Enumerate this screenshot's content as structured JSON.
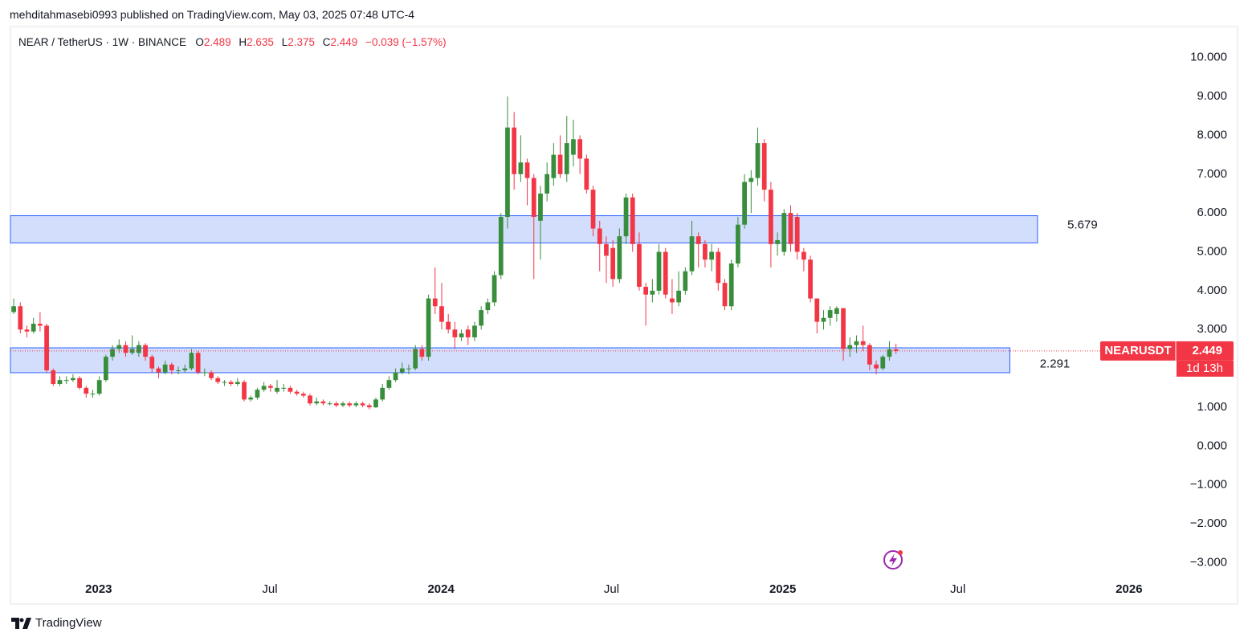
{
  "header": {
    "publisher": "mehditahmasebi0993 published on TradingView.com, May 03, 2025 07:48 UTC-4",
    "brand": "TradingView"
  },
  "chart_data": {
    "type": "candlestick",
    "title": "NEAR / TetherUS · 1W · BINANCE",
    "legend_labels": [
      "O",
      "H",
      "L",
      "C"
    ],
    "change": "−0.039 (−1.57%)",
    "symbol": "NEARUSDT",
    "countdown": "1d 13h",
    "up_color": "#388e3c",
    "down_color": "#f23645",
    "zone_color": "#d3defc",
    "zone_border": "#2962ff",
    "open": [
      3.45,
      3.6,
      3.0,
      2.95,
      3.15,
      3.1,
      1.95,
      1.6,
      1.7,
      1.7,
      1.75,
      1.5,
      1.35,
      1.35,
      1.7,
      2.3,
      2.5,
      2.6,
      2.4,
      2.4,
      2.6,
      2.3,
      2.0,
      1.9,
      2.1,
      1.95,
      1.95,
      2.0,
      2.4,
      1.9,
      1.9,
      1.75,
      1.65,
      1.65,
      1.6,
      1.65,
      1.2,
      1.25,
      1.45,
      1.55,
      1.4,
      1.5,
      1.5,
      1.4,
      1.35,
      1.3,
      1.1,
      1.15,
      1.1,
      1.1,
      1.05,
      1.1,
      1.05,
      1.1,
      1.05,
      1.0,
      1.2,
      1.5,
      1.7,
      1.9,
      2.0,
      2.0,
      2.5,
      2.3,
      3.8,
      3.6,
      3.2,
      3.0,
      2.8,
      3.0,
      2.8,
      3.1,
      3.5,
      3.7,
      4.4,
      5.9,
      8.2,
      7.0,
      7.3,
      6.9,
      5.8,
      6.5,
      6.9,
      7.5,
      7.0,
      7.5,
      7.9,
      7.4,
      6.6,
      5.6,
      5.2,
      5.1,
      4.3,
      5.4,
      6.4,
      5.2,
      4.1,
      3.9,
      4.0,
      5.0,
      3.8,
      3.7,
      4.0,
      4.5,
      5.4,
      5.2,
      4.8,
      5.0,
      4.2,
      3.6,
      4.7,
      5.7,
      6.8,
      6.9,
      7.8,
      6.6,
      5.2,
      5.0,
      6.0,
      5.9,
      5.0,
      4.8,
      3.8,
      3.2,
      3.3,
      3.4,
      3.55,
      2.5,
      2.6,
      2.7,
      2.6,
      2.1,
      2.0,
      2.3,
      2.489
    ],
    "high": [
      3.8,
      3.7,
      3.1,
      3.3,
      3.45,
      3.15,
      2.0,
      1.8,
      1.8,
      1.85,
      1.8,
      1.55,
      1.45,
      1.8,
      2.35,
      2.6,
      2.75,
      2.7,
      2.85,
      2.7,
      2.65,
      2.35,
      2.05,
      2.2,
      2.15,
      2.05,
      2.1,
      2.5,
      2.45,
      2.0,
      1.95,
      1.8,
      1.7,
      1.7,
      1.75,
      1.7,
      1.3,
      1.5,
      1.65,
      1.6,
      1.7,
      1.6,
      1.55,
      1.45,
      1.4,
      1.35,
      1.25,
      1.2,
      1.15,
      1.15,
      1.15,
      1.15,
      1.15,
      1.15,
      1.1,
      1.25,
      1.6,
      1.8,
      2.0,
      2.15,
      2.1,
      2.6,
      2.6,
      3.9,
      4.6,
      4.2,
      3.4,
      3.2,
      3.0,
      3.1,
      3.2,
      3.6,
      3.8,
      4.5,
      6.0,
      9.0,
      8.6,
      8.0,
      7.4,
      7.0,
      6.7,
      7.3,
      7.8,
      8.0,
      8.5,
      8.4,
      8.0,
      7.5,
      6.7,
      5.8,
      5.4,
      5.3,
      5.6,
      6.5,
      6.5,
      5.5,
      4.2,
      4.3,
      5.2,
      5.1,
      4.3,
      4.5,
      4.6,
      5.8,
      5.5,
      5.3,
      5.2,
      5.1,
      4.3,
      4.8,
      5.9,
      7.0,
      7.1,
      8.2,
      7.9,
      6.8,
      5.5,
      6.1,
      6.2,
      6.0,
      5.1,
      4.9,
      3.8,
      3.5,
      3.6,
      3.6,
      3.55,
      2.8,
      2.85,
      3.1,
      2.65,
      2.2,
      2.35,
      2.7,
      2.635
    ],
    "low": [
      3.4,
      2.9,
      2.8,
      2.9,
      2.95,
      1.9,
      1.55,
      1.55,
      1.6,
      1.65,
      1.45,
      1.25,
      1.25,
      1.3,
      1.65,
      2.2,
      2.4,
      2.3,
      2.35,
      2.3,
      2.2,
      1.9,
      1.75,
      1.85,
      1.85,
      1.85,
      1.9,
      1.95,
      1.85,
      1.8,
      1.7,
      1.6,
      1.55,
      1.55,
      1.55,
      1.15,
      1.15,
      1.2,
      1.4,
      1.4,
      1.35,
      1.4,
      1.35,
      1.3,
      1.25,
      1.05,
      1.05,
      1.05,
      1.05,
      1.0,
      1.0,
      1.0,
      1.0,
      1.0,
      0.95,
      0.98,
      1.15,
      1.45,
      1.65,
      1.85,
      1.85,
      1.95,
      2.2,
      2.2,
      3.4,
      3.0,
      2.9,
      2.5,
      2.7,
      2.6,
      2.7,
      3.0,
      3.4,
      3.6,
      4.3,
      5.6,
      6.6,
      6.8,
      6.2,
      4.3,
      4.8,
      6.3,
      6.7,
      6.9,
      6.8,
      7.2,
      7.0,
      6.5,
      5.4,
      4.5,
      4.2,
      4.1,
      4.2,
      5.2,
      5.0,
      4.0,
      3.1,
      3.7,
      3.9,
      3.8,
      3.4,
      3.6,
      3.9,
      4.4,
      4.6,
      4.6,
      4.5,
      4.0,
      3.5,
      3.5,
      4.6,
      5.6,
      6.0,
      6.7,
      6.3,
      4.6,
      4.9,
      4.9,
      5.0,
      4.8,
      4.5,
      3.7,
      2.9,
      3.0,
      3.1,
      3.2,
      2.2,
      2.3,
      2.4,
      2.45,
      1.95,
      1.85,
      1.95,
      2.2,
      2.375
    ],
    "close": [
      3.6,
      3.0,
      2.95,
      3.15,
      3.1,
      1.95,
      1.6,
      1.7,
      1.7,
      1.75,
      1.5,
      1.35,
      1.35,
      1.7,
      2.3,
      2.5,
      2.6,
      2.4,
      2.5,
      2.6,
      2.3,
      2.0,
      1.9,
      2.1,
      1.95,
      1.95,
      2.0,
      2.4,
      1.9,
      1.9,
      1.75,
      1.65,
      1.65,
      1.6,
      1.65,
      1.2,
      1.25,
      1.45,
      1.55,
      1.5,
      1.5,
      1.5,
      1.4,
      1.35,
      1.3,
      1.1,
      1.15,
      1.1,
      1.1,
      1.05,
      1.1,
      1.05,
      1.1,
      1.05,
      1.0,
      1.2,
      1.5,
      1.7,
      1.9,
      2.0,
      2.0,
      2.5,
      2.3,
      3.8,
      3.6,
      3.2,
      3.0,
      2.8,
      2.9,
      2.8,
      3.1,
      3.5,
      3.7,
      4.4,
      5.9,
      8.2,
      7.0,
      7.3,
      6.9,
      5.9,
      6.5,
      7.0,
      7.5,
      7.0,
      7.8,
      7.9,
      7.4,
      6.6,
      5.6,
      5.2,
      4.9,
      4.3,
      5.4,
      6.4,
      5.2,
      4.1,
      3.9,
      4.0,
      5.0,
      3.9,
      3.7,
      4.0,
      4.5,
      5.4,
      5.2,
      4.8,
      5.0,
      4.2,
      3.6,
      4.7,
      5.7,
      6.8,
      6.9,
      7.8,
      6.6,
      5.2,
      5.3,
      6.0,
      5.2,
      5.0,
      4.8,
      3.8,
      3.2,
      3.3,
      3.5,
      3.55,
      2.5,
      2.6,
      2.7,
      2.6,
      2.1,
      2.0,
      2.3,
      2.49,
      2.449
    ],
    "zones": [
      {
        "label": "5.679",
        "low": 5.23,
        "high": 5.93,
        "end": 155.5
      },
      {
        "label": "2.291",
        "low": 1.89,
        "high": 2.53,
        "end": 151.3
      }
    ],
    "xlim": [
      -0.5,
      176
    ],
    "xticks": [
      {
        "value": 12.9,
        "label": "2023"
      },
      {
        "value": 38.9,
        "label": "Jul"
      },
      {
        "value": 64.9,
        "label": "2024"
      },
      {
        "value": 90.8,
        "label": "Jul"
      },
      {
        "value": 116.8,
        "label": "2025"
      },
      {
        "value": 143.4,
        "label": "Jul"
      },
      {
        "value": 169.4,
        "label": "2026"
      }
    ],
    "ylim": [
      -3.3,
      10.8
    ],
    "yticks": [
      {
        "value": 10,
        "label": "10.000"
      },
      {
        "value": 9,
        "label": "9.000"
      },
      {
        "value": 8,
        "label": "8.000"
      },
      {
        "value": 7,
        "label": "7.000"
      },
      {
        "value": 6,
        "label": "6.000"
      },
      {
        "value": 5,
        "label": "5.000"
      },
      {
        "value": 4,
        "label": "4.000"
      },
      {
        "value": 3,
        "label": "3.000"
      },
      {
        "value": 1,
        "label": "1.000"
      },
      {
        "value": 0,
        "label": "0.000"
      },
      {
        "value": -1,
        "label": "−1.000"
      },
      {
        "value": -2,
        "label": "−2.000"
      },
      {
        "value": -3,
        "label": "−3.000"
      }
    ]
  }
}
